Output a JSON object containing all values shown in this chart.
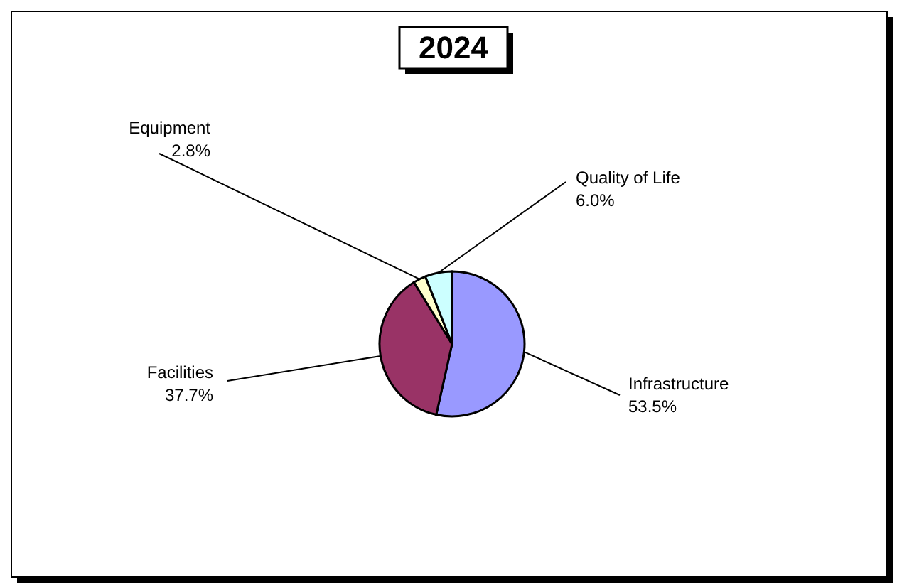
{
  "chart_data": {
    "type": "pie",
    "title": "2024",
    "categories": [
      "Infrastructure",
      "Facilities",
      "Equipment",
      "Quality of Life"
    ],
    "values": [
      53.5,
      37.7,
      2.8,
      6.0
    ],
    "colors": [
      "#9999ff",
      "#993366",
      "#ffffcc",
      "#ccffff"
    ],
    "value_labels": [
      "53.5%",
      "37.7%",
      "2.8%",
      "6.0%"
    ]
  }
}
